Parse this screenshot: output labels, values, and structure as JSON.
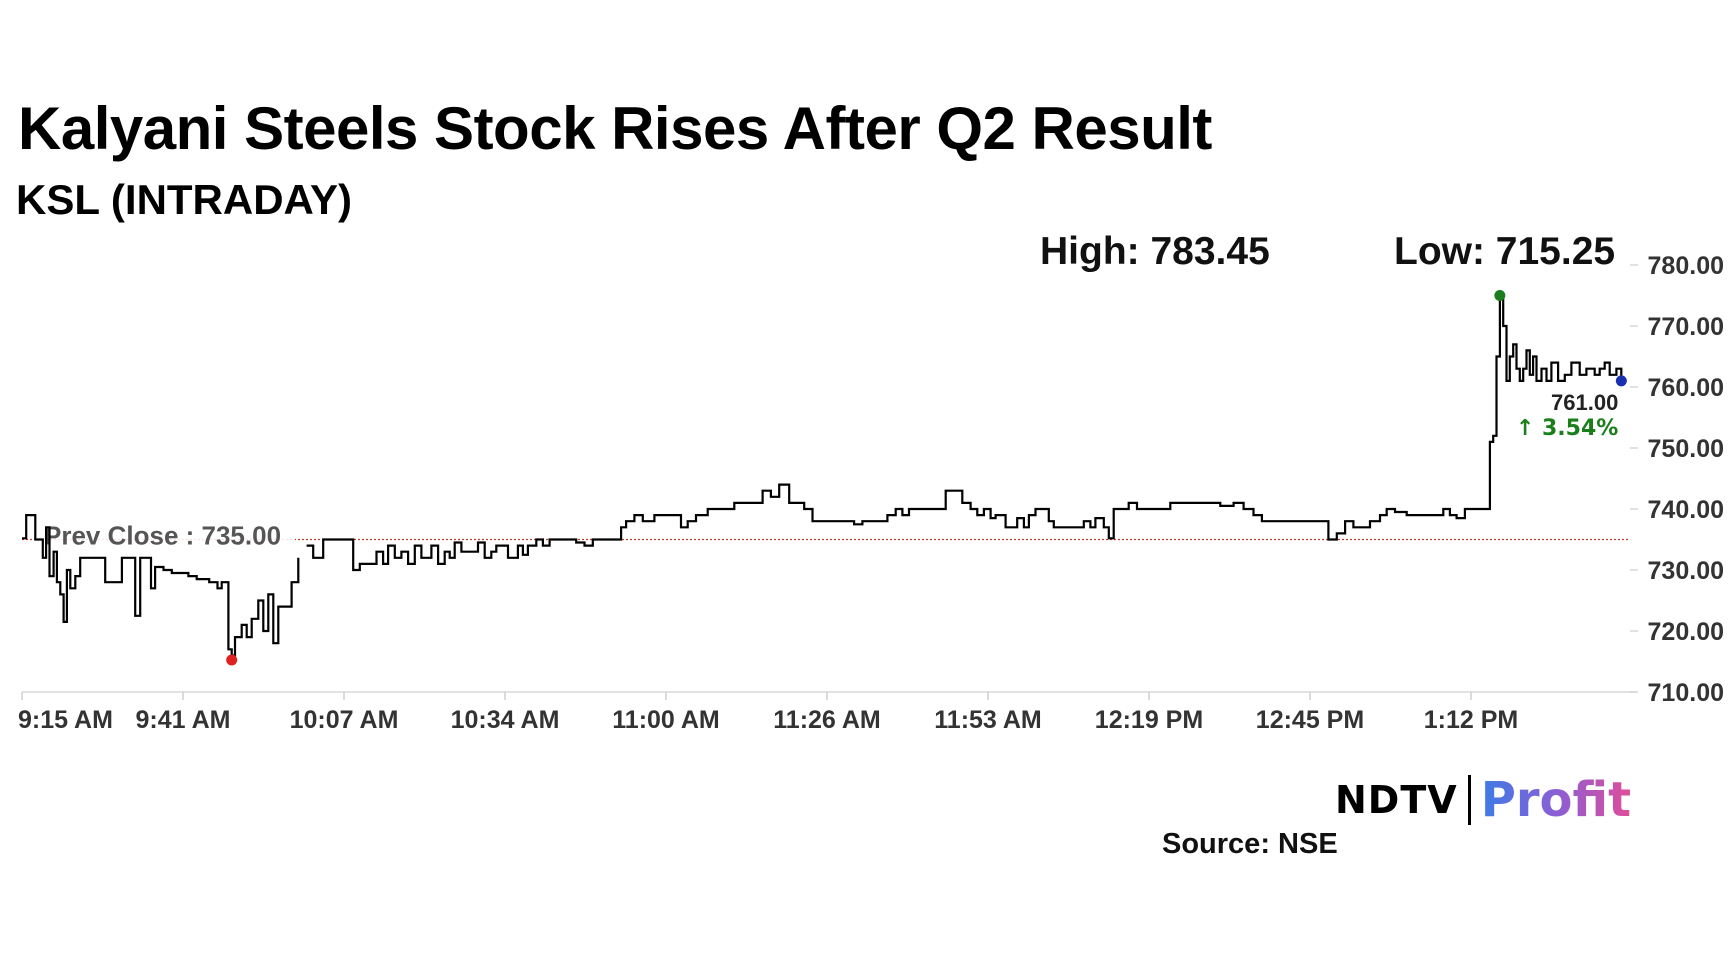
{
  "header": {
    "title": "Kalyani Steels Stock Rises After Q2 Result",
    "subtitle": "KSL (INTRADAY)"
  },
  "stats": {
    "high_label": "High: 783.45",
    "low_label": "Low: 715.25"
  },
  "footer": {
    "logo_ndtv": "NDTV",
    "logo_profit": "Profit",
    "source": "Source: NSE"
  },
  "colors": {
    "line": "#000000",
    "prev_close_line": "#c0392b",
    "high_marker": "#1a7f1a",
    "low_marker": "#e02020",
    "last_marker": "#1a2fb0",
    "change_text": "#1a7f1a"
  },
  "chart_data": {
    "type": "line",
    "title": "Kalyani Steels Stock Rises After Q2 Result",
    "subtitle": "KSL (INTRADAY)",
    "xlabel": "",
    "ylabel": "",
    "x_ticks": [
      "9:15 AM",
      "9:41 AM",
      "10:07 AM",
      "10:34 AM",
      "11:00 AM",
      "11:26 AM",
      "11:53 AM",
      "12:19 PM",
      "12:45 PM",
      "1:12 PM"
    ],
    "y_ticks": [
      "710.00",
      "720.00",
      "730.00",
      "740.00",
      "750.00",
      "760.00",
      "770.00",
      "780.00"
    ],
    "ylim": [
      710,
      781
    ],
    "grid": false,
    "prev_close": {
      "label": "Prev Close : 735.00",
      "value": 735.0
    },
    "last": {
      "value_label": "761.00",
      "change_label": "3.54%",
      "change_arrow": "↑",
      "value": 761.0
    },
    "x_minutes_start": "9:15 AM",
    "series": [
      {
        "points": [
          [
            0,
            735.2
          ],
          [
            0.5,
            739
          ],
          [
            1.2,
            739
          ],
          [
            1.6,
            735
          ],
          [
            2.2,
            735
          ],
          [
            2.5,
            732
          ],
          [
            2.9,
            737
          ],
          [
            3.3,
            729
          ],
          [
            3.8,
            733
          ],
          [
            4.2,
            728
          ],
          [
            4.6,
            726
          ],
          [
            5.0,
            721.5
          ],
          [
            5.4,
            730
          ],
          [
            5.8,
            727
          ],
          [
            6.4,
            729
          ],
          [
            7.0,
            732
          ],
          [
            8.0,
            732
          ],
          [
            9.5,
            732
          ],
          [
            10.0,
            728
          ],
          [
            11.0,
            728
          ],
          [
            12.0,
            732
          ],
          [
            13.0,
            732
          ],
          [
            13.6,
            722.5
          ],
          [
            14.2,
            732
          ],
          [
            15.0,
            732
          ],
          [
            15.5,
            727
          ],
          [
            16.0,
            730.5
          ],
          [
            17.0,
            730
          ],
          [
            18.0,
            729.5
          ],
          [
            20.0,
            729
          ],
          [
            21.0,
            728.5
          ],
          [
            22.5,
            728
          ],
          [
            23.5,
            727
          ],
          [
            24.0,
            728
          ],
          [
            24.8,
            717
          ],
          [
            25.2,
            716
          ],
          [
            25.6,
            719
          ],
          [
            26.4,
            721
          ],
          [
            27.0,
            719
          ],
          [
            27.6,
            722
          ],
          [
            28.4,
            725
          ],
          [
            29.0,
            720
          ],
          [
            29.6,
            726
          ],
          [
            30.2,
            718
          ],
          [
            30.8,
            724
          ],
          [
            31.6,
            724
          ],
          [
            32.4,
            728
          ],
          [
            33.2,
            732
          ],
          [
            34,
            null
          ],
          [
            34.2,
            734
          ],
          [
            35.0,
            732
          ],
          [
            36.2,
            735
          ],
          [
            38.0,
            735
          ],
          [
            39.0,
            735
          ],
          [
            39.8,
            730
          ],
          [
            40.6,
            731
          ],
          [
            42.0,
            731
          ],
          [
            42.6,
            733
          ],
          [
            43.4,
            731
          ],
          [
            44.0,
            734
          ],
          [
            44.8,
            732
          ],
          [
            45.6,
            733
          ],
          [
            46.4,
            731
          ],
          [
            47.2,
            734
          ],
          [
            48.0,
            732
          ],
          [
            48.6,
            732
          ],
          [
            49.2,
            734
          ],
          [
            50.0,
            731
          ],
          [
            50.8,
            733
          ],
          [
            51.4,
            732
          ],
          [
            52.0,
            734.5
          ],
          [
            52.8,
            733
          ],
          [
            54.0,
            733
          ],
          [
            54.8,
            734.5
          ],
          [
            55.6,
            732
          ],
          [
            56.4,
            733
          ],
          [
            57.0,
            734
          ],
          [
            57.6,
            734
          ],
          [
            58.4,
            732
          ],
          [
            59.0,
            732
          ],
          [
            59.6,
            734
          ],
          [
            60.2,
            732.5
          ],
          [
            60.8,
            734
          ],
          [
            61.8,
            735
          ],
          [
            62.6,
            734
          ],
          [
            63.4,
            735
          ],
          [
            64.6,
            735
          ],
          [
            65.4,
            735
          ],
          [
            66.6,
            734.5
          ],
          [
            67.6,
            734
          ],
          [
            68.6,
            735
          ],
          [
            70.0,
            735
          ],
          [
            71.0,
            735
          ],
          [
            72.0,
            737
          ],
          [
            72.6,
            738
          ],
          [
            73.6,
            739
          ],
          [
            74.6,
            738
          ],
          [
            76.0,
            739
          ],
          [
            77.6,
            739
          ],
          [
            78.6,
            739
          ],
          [
            79.2,
            737
          ],
          [
            80.0,
            738
          ],
          [
            81.0,
            739
          ],
          [
            82.4,
            740
          ],
          [
            84.0,
            740
          ],
          [
            85.6,
            741
          ],
          [
            86.6,
            741
          ],
          [
            88.0,
            741
          ],
          [
            89.0,
            743
          ],
          [
            90.0,
            742
          ],
          [
            91.0,
            744
          ],
          [
            91.6,
            744
          ],
          [
            92.2,
            741
          ],
          [
            93.4,
            741
          ],
          [
            94.0,
            740
          ],
          [
            95.0,
            738
          ],
          [
            96.0,
            738
          ],
          [
            98.0,
            738
          ],
          [
            100.0,
            737.5
          ],
          [
            101.0,
            738
          ],
          [
            103.0,
            738
          ],
          [
            104.0,
            739
          ],
          [
            105.0,
            740
          ],
          [
            105.8,
            739
          ],
          [
            106.6,
            740
          ],
          [
            108.0,
            740
          ],
          [
            110.0,
            740
          ],
          [
            111.0,
            743
          ],
          [
            112.4,
            743
          ],
          [
            113.0,
            741
          ],
          [
            114.0,
            740
          ],
          [
            114.8,
            739
          ],
          [
            115.6,
            740
          ],
          [
            116.4,
            738.5
          ],
          [
            117.0,
            739
          ],
          [
            118.2,
            737
          ],
          [
            119.0,
            737
          ],
          [
            119.6,
            738.5
          ],
          [
            120.4,
            737
          ],
          [
            121.0,
            739
          ],
          [
            121.8,
            740
          ],
          [
            122.6,
            740
          ],
          [
            123.4,
            738
          ],
          [
            124.0,
            737
          ],
          [
            125.0,
            737
          ],
          [
            126.0,
            737
          ],
          [
            127.0,
            737
          ],
          [
            127.6,
            738
          ],
          [
            128.4,
            737
          ],
          [
            129.0,
            738.5
          ],
          [
            130.0,
            737
          ],
          [
            130.6,
            735.2
          ],
          [
            131.2,
            740
          ],
          [
            132.2,
            740
          ],
          [
            133.0,
            741
          ],
          [
            134.0,
            740
          ],
          [
            135.4,
            740
          ],
          [
            136.4,
            740
          ],
          [
            137.4,
            740
          ],
          [
            138.0,
            741
          ],
          [
            139.4,
            741
          ],
          [
            141.0,
            741
          ],
          [
            142.4,
            741
          ],
          [
            144.0,
            740.5
          ],
          [
            145.6,
            741
          ],
          [
            146.8,
            740
          ],
          [
            148.0,
            739
          ],
          [
            149.0,
            738
          ],
          [
            150.0,
            738
          ],
          [
            151.0,
            738
          ],
          [
            152.2,
            738
          ],
          [
            153.4,
            738
          ],
          [
            154.6,
            738
          ],
          [
            156.0,
            738
          ],
          [
            157.0,
            735
          ],
          [
            158.0,
            736
          ],
          [
            159.0,
            738
          ],
          [
            160.0,
            737
          ],
          [
            161.0,
            737
          ],
          [
            162.0,
            738
          ],
          [
            163.2,
            739
          ],
          [
            164.0,
            740
          ],
          [
            165.0,
            739.5
          ],
          [
            166.4,
            739
          ],
          [
            167.6,
            739
          ],
          [
            168.6,
            739
          ],
          [
            169.8,
            739
          ],
          [
            170.8,
            740
          ],
          [
            171.6,
            739
          ],
          [
            172.4,
            738.5
          ],
          [
            173.4,
            740
          ],
          [
            174.6,
            740
          ],
          [
            175.8,
            740
          ],
          [
            176.4,
            751
          ],
          [
            176.8,
            752
          ],
          [
            177.2,
            765
          ],
          [
            177.6,
            775
          ],
          [
            178.0,
            770
          ],
          [
            178.4,
            761
          ],
          [
            178.8,
            765
          ],
          [
            179.2,
            767
          ],
          [
            179.6,
            763
          ],
          [
            180.0,
            761
          ],
          [
            180.4,
            763
          ],
          [
            180.8,
            766
          ],
          [
            181.2,
            762
          ],
          [
            181.6,
            765
          ],
          [
            182.0,
            761
          ],
          [
            182.6,
            763
          ],
          [
            183.2,
            761
          ],
          [
            183.8,
            764
          ],
          [
            184.6,
            761
          ],
          [
            185.4,
            762
          ],
          [
            186.2,
            764
          ],
          [
            187.2,
            762
          ],
          [
            188.0,
            763
          ],
          [
            189.0,
            762
          ],
          [
            189.6,
            763
          ],
          [
            190.2,
            764
          ],
          [
            190.8,
            762
          ],
          [
            191.6,
            763
          ],
          [
            192.2,
            761
          ]
        ]
      }
    ],
    "markers": {
      "high": {
        "x": 177.6,
        "y": 775
      },
      "low": {
        "x": 25.2,
        "y": 715.25
      },
      "last": {
        "x": 192.2,
        "y": 761
      }
    }
  }
}
